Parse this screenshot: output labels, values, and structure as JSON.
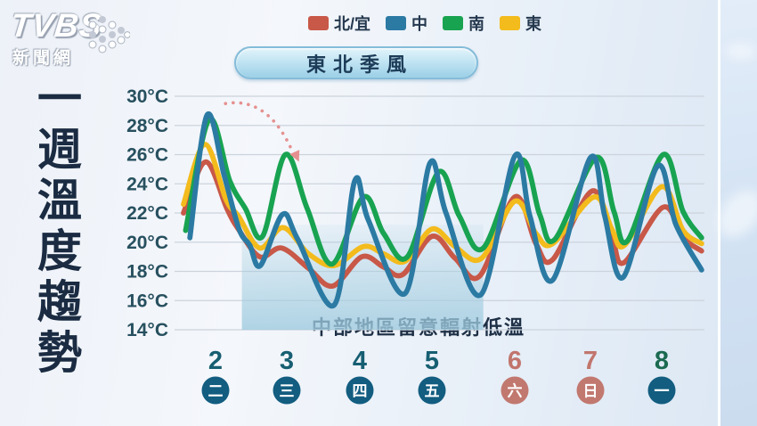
{
  "brand": {
    "logo_text": "TVBS",
    "logo_subtext": "新聞網"
  },
  "sidebar_title": "一週溫度趨勢",
  "monsoon_badge": "東北季風",
  "chart_data": {
    "type": "line",
    "title": "一週溫度趨勢",
    "y_unit": "°C",
    "ylim": [
      14,
      30
    ],
    "ytick_step": 2,
    "ytick_labels": [
      "30°C",
      "28°C",
      "26°C",
      "24°C",
      "22°C",
      "20°C",
      "18°C",
      "16°C",
      "14°C"
    ],
    "grid": true,
    "legend_position": "top",
    "x_days": [
      {
        "num": "2",
        "weekday": "二",
        "weekend": false,
        "num_color": "#175f72",
        "circle_color": "#125d80"
      },
      {
        "num": "3",
        "weekday": "三",
        "weekend": false,
        "num_color": "#175f72",
        "circle_color": "#125d80"
      },
      {
        "num": "4",
        "weekday": "四",
        "weekend": false,
        "num_color": "#175f72",
        "circle_color": "#125d80"
      },
      {
        "num": "5",
        "weekday": "五",
        "weekend": false,
        "num_color": "#175f72",
        "circle_color": "#125d80"
      },
      {
        "num": "6",
        "weekday": "六",
        "weekend": true,
        "num_color": "#c1756d",
        "circle_color": "#c1786f"
      },
      {
        "num": "7",
        "weekday": "日",
        "weekend": true,
        "num_color": "#c1756d",
        "circle_color": "#c1786f"
      },
      {
        "num": "8",
        "weekday": "一",
        "weekend": false,
        "num_color": "#1b6a50",
        "circle_color": "#125d80"
      }
    ],
    "series": [
      {
        "key": "north-yilan",
        "name": "北/宜",
        "color": "#c85848",
        "points": [
          [
            1.55,
            22.0
          ],
          [
            1.86,
            25.5
          ],
          [
            2.16,
            22.3
          ],
          [
            2.32,
            20.9
          ],
          [
            2.62,
            19.0
          ],
          [
            2.93,
            19.6
          ],
          [
            3.3,
            18.2
          ],
          [
            3.63,
            17.0
          ],
          [
            4.03,
            19.0
          ],
          [
            4.33,
            18.3
          ],
          [
            4.6,
            17.8
          ],
          [
            5.0,
            20.4
          ],
          [
            5.28,
            18.9
          ],
          [
            5.58,
            17.7
          ],
          [
            6.0,
            23.1
          ],
          [
            6.28,
            19.9
          ],
          [
            6.5,
            18.8
          ],
          [
            7.02,
            23.5
          ],
          [
            7.3,
            20.4
          ],
          [
            7.47,
            18.6
          ],
          [
            8.02,
            22.4
          ],
          [
            8.3,
            20.3
          ],
          [
            8.56,
            19.4
          ]
        ]
      },
      {
        "key": "central",
        "name": "中",
        "color": "#2b7aa3",
        "points": [
          [
            1.64,
            20.3
          ],
          [
            1.88,
            28.7
          ],
          [
            2.12,
            24.6
          ],
          [
            2.33,
            20.9
          ],
          [
            2.48,
            19.8
          ],
          [
            2.63,
            18.4
          ],
          [
            2.94,
            21.9
          ],
          [
            3.15,
            20.2
          ],
          [
            3.65,
            15.7
          ],
          [
            3.93,
            24.2
          ],
          [
            4.12,
            21.5
          ],
          [
            4.63,
            16.5
          ],
          [
            4.97,
            25.4
          ],
          [
            5.17,
            22.0
          ],
          [
            5.59,
            16.4
          ],
          [
            6.0,
            25.9
          ],
          [
            6.2,
            21.8
          ],
          [
            6.5,
            17.4
          ],
          [
            7.0,
            25.8
          ],
          [
            7.2,
            21.8
          ],
          [
            7.46,
            17.6
          ],
          [
            7.94,
            25.2
          ],
          [
            8.2,
            21.2
          ],
          [
            8.56,
            18.1
          ]
        ]
      },
      {
        "key": "south",
        "name": "南",
        "color": "#18a351",
        "points": [
          [
            1.58,
            20.8
          ],
          [
            1.91,
            28.4
          ],
          [
            2.2,
            24.2
          ],
          [
            2.42,
            22.3
          ],
          [
            2.66,
            20.4
          ],
          [
            2.98,
            26.0
          ],
          [
            3.28,
            22.3
          ],
          [
            3.62,
            18.5
          ],
          [
            4.05,
            23.1
          ],
          [
            4.33,
            20.6
          ],
          [
            4.66,
            19.0
          ],
          [
            5.08,
            24.8
          ],
          [
            5.33,
            21.8
          ],
          [
            5.62,
            19.6
          ],
          [
            6.08,
            25.6
          ],
          [
            6.33,
            21.9
          ],
          [
            6.53,
            20.2
          ],
          [
            7.08,
            25.8
          ],
          [
            7.33,
            22.1
          ],
          [
            7.52,
            20.1
          ],
          [
            8.02,
            26.0
          ],
          [
            8.3,
            22.1
          ],
          [
            8.56,
            20.3
          ]
        ]
      },
      {
        "key": "east",
        "name": "東",
        "color": "#f3bb1c",
        "points": [
          [
            1.55,
            22.6
          ],
          [
            1.85,
            26.7
          ],
          [
            2.15,
            22.9
          ],
          [
            2.32,
            21.8
          ],
          [
            2.62,
            19.6
          ],
          [
            2.95,
            21.0
          ],
          [
            3.3,
            19.2
          ],
          [
            3.65,
            18.4
          ],
          [
            4.05,
            19.7
          ],
          [
            4.33,
            19.2
          ],
          [
            4.63,
            18.7
          ],
          [
            5.0,
            20.9
          ],
          [
            5.28,
            19.7
          ],
          [
            5.6,
            18.9
          ],
          [
            6.0,
            22.8
          ],
          [
            6.28,
            20.6
          ],
          [
            6.5,
            19.9
          ],
          [
            7.05,
            23.1
          ],
          [
            7.3,
            20.9
          ],
          [
            7.48,
            19.8
          ],
          [
            8.0,
            23.8
          ],
          [
            8.3,
            20.8
          ],
          [
            8.56,
            19.9
          ]
        ]
      }
    ],
    "annotations": {
      "monsoon_badge": "東北季風",
      "shaded_region": {
        "x_from_day": 2.37,
        "x_to_day": 5.62,
        "temp_top": 21.2,
        "temp_bottom": 14.0,
        "color": "#9fcbdf",
        "label": "中部地區留意輻射低溫"
      },
      "trend_arrow": {
        "from_day": 2.14,
        "from_temp": 29.5,
        "to_day": 3.07,
        "to_temp": 26.3,
        "color": "#e59090"
      }
    },
    "axis_colors": {
      "ylabel": "#27505f",
      "gridline": "#ccd3dc"
    }
  }
}
